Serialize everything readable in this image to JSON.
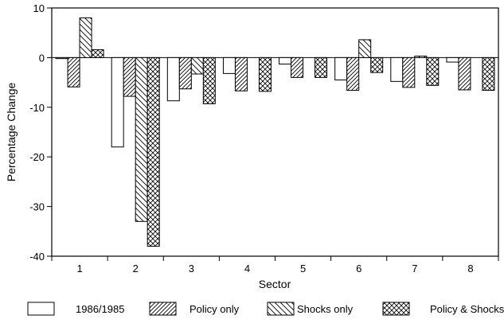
{
  "chart_data": {
    "type": "bar",
    "title": "",
    "xlabel": "Sector",
    "ylabel": "Percentage Change",
    "categories": [
      "1",
      "2",
      "3",
      "4",
      "5",
      "6",
      "7",
      "8"
    ],
    "ylim": [
      -40,
      10
    ],
    "yticks": [
      10,
      0,
      -10,
      -20,
      -30,
      -40
    ],
    "ytick_labels": [
      "10",
      "0",
      "-10",
      "-20",
      "-30",
      "-40"
    ],
    "grid": false,
    "legend_position": "bottom",
    "series": [
      {
        "name": "1986/1985",
        "pattern": "blank",
        "values": [
          -0.2,
          -18.0,
          -8.7,
          -3.2,
          -1.3,
          -4.5,
          -4.8,
          -0.9
        ]
      },
      {
        "name": "Policy only",
        "pattern": "forward-hatch",
        "values": [
          -5.9,
          -7.8,
          -6.3,
          -6.7,
          -4.0,
          -6.6,
          -6.0,
          -6.5
        ]
      },
      {
        "name": "Shocks only",
        "pattern": "back-hatch",
        "values": [
          8.0,
          -33.0,
          -3.3,
          0.0,
          0.0,
          3.6,
          0.3,
          0.0
        ]
      },
      {
        "name": "Policy & Shocks",
        "pattern": "cross-hatch",
        "values": [
          1.6,
          -38.0,
          -9.3,
          -6.8,
          -4.0,
          -3.0,
          -5.6,
          -6.6
        ]
      }
    ]
  }
}
